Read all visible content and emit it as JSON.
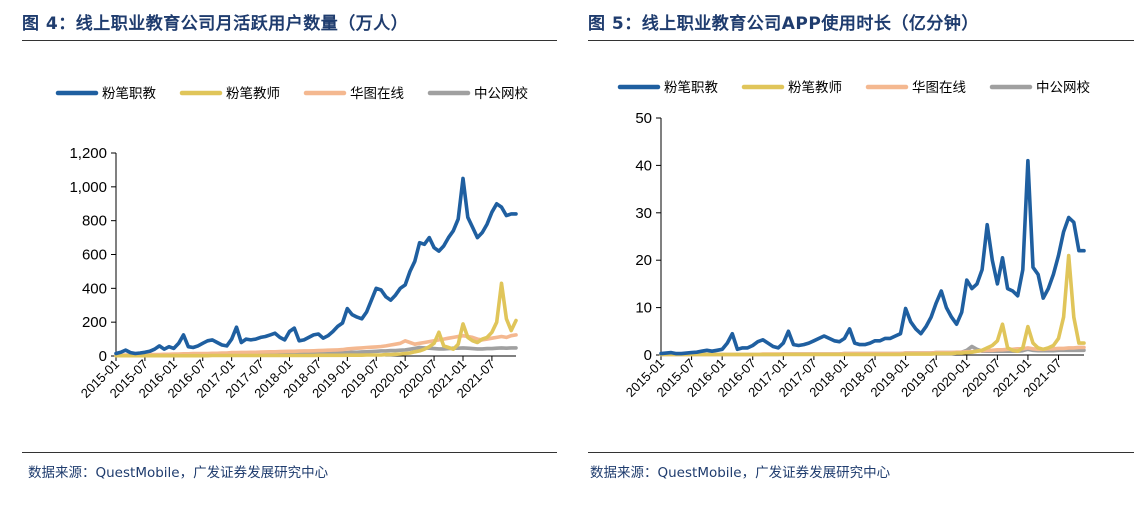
{
  "left": {
    "title": "图 4：线上职业教育公司月活跃用户数量（万人）",
    "source": "数据来源：QuestMobile，广发证券发展研究中心"
  },
  "right": {
    "title": "图 5：线上职业教育公司APP使用时长（亿分钟）",
    "source": "数据来源：QuestMobile，广发证券发展研究中心"
  },
  "chart_data": [
    {
      "type": "line",
      "x": [
        "2015-01",
        "2015-02",
        "2015-03",
        "2015-04",
        "2015-05",
        "2015-06",
        "2015-07",
        "2015-08",
        "2015-09",
        "2015-10",
        "2015-11",
        "2015-12",
        "2016-01",
        "2016-02",
        "2016-03",
        "2016-04",
        "2016-05",
        "2016-06",
        "2016-07",
        "2016-08",
        "2016-09",
        "2016-10",
        "2016-11",
        "2016-12",
        "2017-01",
        "2017-02",
        "2017-03",
        "2017-04",
        "2017-05",
        "2017-06",
        "2017-07",
        "2017-08",
        "2017-09",
        "2017-10",
        "2017-11",
        "2017-12",
        "2018-01",
        "2018-02",
        "2018-03",
        "2018-04",
        "2018-05",
        "2018-06",
        "2018-07",
        "2018-08",
        "2018-09",
        "2018-10",
        "2018-11",
        "2018-12",
        "2019-01",
        "2019-02",
        "2019-03",
        "2019-04",
        "2019-05",
        "2019-06",
        "2019-07",
        "2019-08",
        "2019-09",
        "2019-10",
        "2019-11",
        "2019-12",
        "2020-01",
        "2020-02",
        "2020-03",
        "2020-04",
        "2020-05",
        "2020-06",
        "2020-07",
        "2020-08",
        "2020-09",
        "2020-10",
        "2020-11",
        "2020-12",
        "2021-01",
        "2021-02",
        "2021-03",
        "2021-04",
        "2021-05",
        "2021-06",
        "2021-07",
        "2021-08",
        "2021-09",
        "2021-10",
        "2021-11",
        "2021-12"
      ],
      "x_tick_labels": [
        "2015-01",
        "2015-07",
        "2016-01",
        "2016-07",
        "2017-01",
        "2017-07",
        "2018-01",
        "2018-07",
        "2019-01",
        "2019-07",
        "2020-01",
        "2020-07",
        "2021-01",
        "2021-07"
      ],
      "ylim": [
        0,
        1200
      ],
      "y_ticks": [
        "0",
        "200",
        "400",
        "600",
        "800",
        "1,000",
        "1,200"
      ],
      "y_tick_values": [
        0,
        200,
        400,
        600,
        800,
        1000,
        1200
      ],
      "series": [
        {
          "name": "粉笔职教",
          "color": "#1f5fa0",
          "values": [
            15,
            22,
            35,
            20,
            15,
            18,
            22,
            28,
            40,
            60,
            40,
            55,
            45,
            75,
            125,
            55,
            50,
            60,
            75,
            90,
            95,
            80,
            65,
            60,
            100,
            170,
            80,
            100,
            95,
            100,
            110,
            115,
            125,
            135,
            110,
            95,
            145,
            165,
            90,
            95,
            110,
            125,
            130,
            105,
            120,
            145,
            175,
            195,
            280,
            245,
            230,
            220,
            260,
            330,
            400,
            390,
            350,
            330,
            360,
            400,
            420,
            500,
            560,
            670,
            660,
            700,
            640,
            620,
            650,
            700,
            740,
            810,
            1050,
            820,
            760,
            700,
            730,
            780,
            850,
            900,
            880,
            830,
            840,
            840
          ]
        },
        {
          "name": "粉笔教师",
          "color": "#e0c55a",
          "values": [
            2,
            2,
            2,
            2,
            2,
            2,
            2,
            2,
            2,
            2,
            2,
            2,
            2,
            2,
            2,
            2,
            2,
            2,
            2,
            2,
            3,
            3,
            3,
            3,
            3,
            3,
            3,
            3,
            3,
            3,
            3,
            3,
            3,
            3,
            3,
            3,
            3,
            3,
            3,
            3,
            3,
            3,
            4,
            4,
            4,
            4,
            4,
            4,
            5,
            5,
            5,
            5,
            6,
            6,
            6,
            6,
            8,
            8,
            10,
            12,
            15,
            18,
            25,
            30,
            40,
            55,
            75,
            140,
            60,
            50,
            40,
            70,
            190,
            110,
            90,
            80,
            100,
            110,
            140,
            200,
            430,
            220,
            150,
            210
          ]
        },
        {
          "name": "华图在线",
          "color": "#f4b890",
          "values": [
            5,
            6,
            6,
            7,
            7,
            8,
            8,
            8,
            9,
            9,
            10,
            10,
            12,
            12,
            13,
            13,
            14,
            14,
            15,
            15,
            16,
            16,
            17,
            18,
            20,
            20,
            21,
            21,
            22,
            22,
            23,
            24,
            25,
            25,
            26,
            27,
            28,
            28,
            29,
            30,
            30,
            31,
            32,
            33,
            34,
            35,
            36,
            38,
            42,
            44,
            46,
            48,
            50,
            52,
            54,
            56,
            60,
            65,
            70,
            75,
            90,
            80,
            70,
            75,
            80,
            85,
            90,
            95,
            100,
            105,
            110,
            115,
            120,
            115,
            110,
            100,
            95,
            100,
            105,
            110,
            115,
            110,
            120,
            125
          ]
        },
        {
          "name": "中公网校",
          "color": "#a0a0a0",
          "values": [
            3,
            3,
            3,
            3,
            3,
            3,
            3,
            3,
            3,
            3,
            3,
            3,
            4,
            4,
            4,
            4,
            4,
            4,
            5,
            5,
            5,
            5,
            5,
            5,
            6,
            6,
            6,
            6,
            6,
            6,
            7,
            7,
            7,
            8,
            8,
            8,
            9,
            9,
            10,
            10,
            11,
            12,
            13,
            14,
            15,
            16,
            18,
            20,
            20,
            22,
            22,
            24,
            25,
            26,
            28,
            30,
            30,
            32,
            32,
            34,
            36,
            40,
            45,
            50,
            48,
            46,
            44,
            42,
            42,
            44,
            46,
            46,
            48,
            46,
            44,
            42,
            42,
            44,
            44,
            46,
            48,
            46,
            48,
            48
          ]
        }
      ]
    },
    {
      "type": "line",
      "x": [
        "2015-01",
        "2015-02",
        "2015-03",
        "2015-04",
        "2015-05",
        "2015-06",
        "2015-07",
        "2015-08",
        "2015-09",
        "2015-10",
        "2015-11",
        "2015-12",
        "2016-01",
        "2016-02",
        "2016-03",
        "2016-04",
        "2016-05",
        "2016-06",
        "2016-07",
        "2016-08",
        "2016-09",
        "2016-10",
        "2016-11",
        "2016-12",
        "2017-01",
        "2017-02",
        "2017-03",
        "2017-04",
        "2017-05",
        "2017-06",
        "2017-07",
        "2017-08",
        "2017-09",
        "2017-10",
        "2017-11",
        "2017-12",
        "2018-01",
        "2018-02",
        "2018-03",
        "2018-04",
        "2018-05",
        "2018-06",
        "2018-07",
        "2018-08",
        "2018-09",
        "2018-10",
        "2018-11",
        "2018-12",
        "2019-01",
        "2019-02",
        "2019-03",
        "2019-04",
        "2019-05",
        "2019-06",
        "2019-07",
        "2019-08",
        "2019-09",
        "2019-10",
        "2019-11",
        "2019-12",
        "2020-01",
        "2020-02",
        "2020-03",
        "2020-04",
        "2020-05",
        "2020-06",
        "2020-07",
        "2020-08",
        "2020-09",
        "2020-10",
        "2020-11",
        "2020-12",
        "2021-01",
        "2021-02",
        "2021-03",
        "2021-04",
        "2021-05",
        "2021-06",
        "2021-07",
        "2021-08",
        "2021-09",
        "2021-10",
        "2021-11",
        "2021-12"
      ],
      "x_tick_labels": [
        "2015-01",
        "2015-07",
        "2016-01",
        "2016-07",
        "2017-01",
        "2017-07",
        "2018-01",
        "2018-07",
        "2019-01",
        "2019-07",
        "2020-01",
        "2020-07",
        "2021-01",
        "2021-07"
      ],
      "ylim": [
        0,
        50
      ],
      "y_ticks": [
        "0",
        "10",
        "20",
        "30",
        "40",
        "50"
      ],
      "y_tick_values": [
        0,
        10,
        20,
        30,
        40,
        50
      ],
      "series": [
        {
          "name": "粉笔职教",
          "color": "#1f5fa0",
          "values": [
            0.3,
            0.4,
            0.5,
            0.3,
            0.3,
            0.4,
            0.5,
            0.6,
            0.8,
            1.0,
            0.8,
            1.0,
            1.2,
            2.5,
            4.5,
            1.2,
            1.5,
            1.5,
            2.0,
            2.8,
            3.2,
            2.5,
            1.8,
            1.5,
            2.5,
            5.0,
            2.2,
            2.0,
            2.2,
            2.5,
            3.0,
            3.5,
            4.0,
            3.5,
            3.0,
            2.8,
            3.5,
            5.5,
            2.5,
            2.2,
            2.2,
            2.5,
            3.0,
            3.0,
            3.5,
            3.5,
            4.0,
            4.5,
            9.8,
            7.0,
            5.5,
            4.5,
            6.0,
            8.0,
            11.0,
            13.5,
            10.0,
            8.0,
            6.5,
            9.0,
            15.8,
            14.0,
            15.0,
            18.0,
            27.5,
            20.0,
            15.0,
            20.5,
            14.0,
            13.5,
            12.5,
            18.0,
            41.0,
            18.5,
            17.0,
            12.0,
            14.0,
            17.0,
            21.0,
            26.0,
            29.0,
            28.0,
            22.0,
            22.0
          ]
        },
        {
          "name": "粉笔教师",
          "color": "#e0c55a",
          "values": [
            0.1,
            0.1,
            0.1,
            0.1,
            0.1,
            0.1,
            0.1,
            0.1,
            0.1,
            0.1,
            0.1,
            0.1,
            0.1,
            0.1,
            0.1,
            0.1,
            0.1,
            0.1,
            0.1,
            0.1,
            0.1,
            0.1,
            0.1,
            0.1,
            0.1,
            0.1,
            0.1,
            0.1,
            0.1,
            0.1,
            0.1,
            0.1,
            0.1,
            0.1,
            0.1,
            0.1,
            0.1,
            0.1,
            0.1,
            0.1,
            0.1,
            0.1,
            0.1,
            0.1,
            0.1,
            0.1,
            0.1,
            0.1,
            0.2,
            0.2,
            0.2,
            0.2,
            0.2,
            0.2,
            0.3,
            0.3,
            0.3,
            0.3,
            0.4,
            0.4,
            0.5,
            0.6,
            0.8,
            1.0,
            1.5,
            2.0,
            3.0,
            6.5,
            1.5,
            1.0,
            0.8,
            1.5,
            6.0,
            2.5,
            1.5,
            1.2,
            1.5,
            2.0,
            3.5,
            8.0,
            21.0,
            8.0,
            2.5,
            2.5
          ]
        },
        {
          "name": "华图在线",
          "color": "#f4b890",
          "values": [
            0.1,
            0.1,
            0.1,
            0.1,
            0.1,
            0.1,
            0.1,
            0.1,
            0.1,
            0.1,
            0.1,
            0.1,
            0.1,
            0.1,
            0.1,
            0.1,
            0.1,
            0.1,
            0.1,
            0.1,
            0.2,
            0.2,
            0.2,
            0.2,
            0.2,
            0.2,
            0.2,
            0.2,
            0.2,
            0.2,
            0.2,
            0.2,
            0.2,
            0.2,
            0.2,
            0.2,
            0.3,
            0.3,
            0.3,
            0.3,
            0.3,
            0.3,
            0.3,
            0.3,
            0.3,
            0.3,
            0.3,
            0.3,
            0.4,
            0.4,
            0.4,
            0.4,
            0.4,
            0.4,
            0.5,
            0.5,
            0.5,
            0.5,
            0.6,
            0.6,
            0.7,
            0.7,
            0.8,
            0.9,
            1.0,
            1.0,
            1.1,
            1.1,
            1.2,
            1.2,
            1.3,
            1.3,
            1.5,
            1.3,
            1.2,
            1.2,
            1.3,
            1.3,
            1.4,
            1.4,
            1.5,
            1.5,
            1.6,
            1.6
          ]
        },
        {
          "name": "中公网校",
          "color": "#a0a0a0",
          "values": [
            0.1,
            0.1,
            0.1,
            0.1,
            0.1,
            0.1,
            0.1,
            0.1,
            0.1,
            0.1,
            0.1,
            0.1,
            0.1,
            0.1,
            0.1,
            0.1,
            0.1,
            0.1,
            0.1,
            0.1,
            0.1,
            0.1,
            0.1,
            0.1,
            0.2,
            0.2,
            0.2,
            0.2,
            0.2,
            0.2,
            0.2,
            0.2,
            0.2,
            0.2,
            0.2,
            0.2,
            0.3,
            0.3,
            0.3,
            0.3,
            0.3,
            0.3,
            0.3,
            0.3,
            0.3,
            0.3,
            0.3,
            0.3,
            0.4,
            0.4,
            0.4,
            0.4,
            0.4,
            0.4,
            0.5,
            0.5,
            0.5,
            0.5,
            0.5,
            0.6,
            1.0,
            1.8,
            1.2,
            0.8,
            0.8,
            0.8,
            0.8,
            0.8,
            0.8,
            0.8,
            0.8,
            0.9,
            1.2,
            1.0,
            0.9,
            0.9,
            0.9,
            0.9,
            1.0,
            1.0,
            1.0,
            1.0,
            1.0,
            1.0
          ]
        }
      ]
    }
  ]
}
